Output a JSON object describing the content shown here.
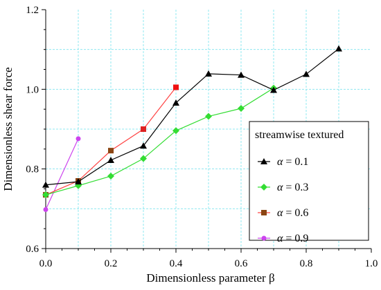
{
  "chart_data": {
    "type": "line",
    "xlabel": "Dimensionless parameter β",
    "ylabel": "Dimensionless shear force",
    "xlim": [
      0.0,
      1.0
    ],
    "ylim": [
      0.6,
      1.2
    ],
    "xticks": [
      "0.0",
      "0.2",
      "0.4",
      "0.6",
      "0.8",
      "1.0"
    ],
    "yticks": [
      "0.6",
      "0.8",
      "1.0",
      "1.2"
    ],
    "grid": true,
    "legend_position": "right",
    "legend_title": "streamwise textured",
    "series": [
      {
        "name": "α = 0.1",
        "label_symbol": "α",
        "label_value": "= 0.1",
        "color": "#000000",
        "marker": "triangle",
        "x": [
          0.0,
          0.1,
          0.2,
          0.3,
          0.4,
          0.5,
          0.6,
          0.7,
          0.8,
          0.9
        ],
        "y": [
          0.76,
          0.768,
          0.822,
          0.858,
          0.966,
          1.039,
          1.036,
          0.998,
          1.038,
          1.102
        ]
      },
      {
        "name": "α = 0.3",
        "label_symbol": "α",
        "label_value": "= 0.3",
        "color": "#33dd33",
        "marker": "diamond",
        "x": [
          0.0,
          0.1,
          0.2,
          0.3,
          0.4,
          0.5,
          0.6,
          0.7
        ],
        "y": [
          0.735,
          0.758,
          0.782,
          0.826,
          0.896,
          0.932,
          0.952,
          1.003
        ]
      },
      {
        "name": "α = 0.6",
        "label_symbol": "α",
        "label_value": "= 0.6",
        "color": "#8b4513",
        "line_color": "#ff4444",
        "marker": "square",
        "marker_colors": [
          "#8b4513",
          "#8b4513",
          "#8b4513",
          "#dd2222",
          "#ee1111"
        ],
        "x": [
          0.0,
          0.1,
          0.2,
          0.3,
          0.4
        ],
        "y": [
          0.735,
          0.77,
          0.846,
          0.9,
          1.005
        ]
      },
      {
        "name": "α = 0.9",
        "label_symbol": "α",
        "label_value": "= 0.9",
        "color": "#cc44ee",
        "marker": "circle",
        "x": [
          0.0,
          0.1
        ],
        "y": [
          0.698,
          0.876
        ]
      }
    ]
  }
}
